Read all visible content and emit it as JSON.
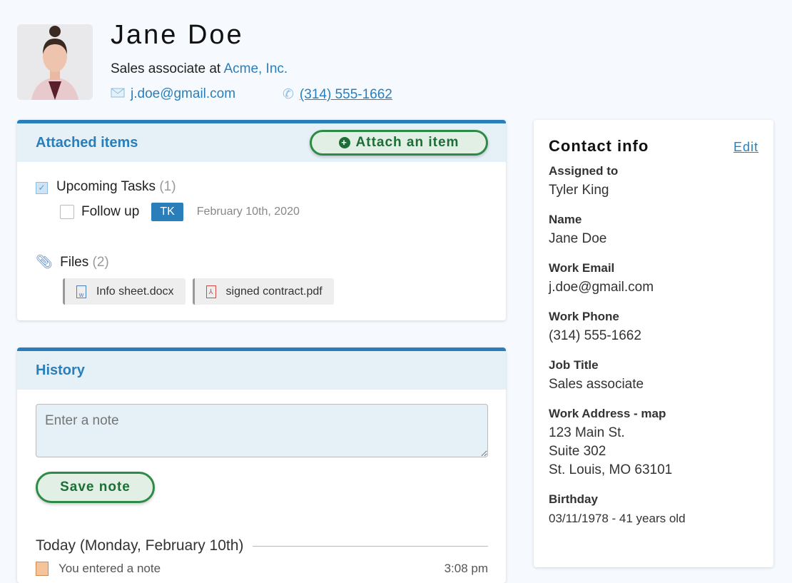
{
  "profile": {
    "name": "Jane Doe",
    "role_prefix": "Sales associate at",
    "company": "Acme, Inc.",
    "email": "j.doe@gmail.com",
    "phone": "(314) 555-1662"
  },
  "attached": {
    "title": "Attached items",
    "attach_button": "Attach an item",
    "tasks": {
      "label": "Upcoming Tasks",
      "count": "(1)",
      "items": [
        {
          "label": "Follow up",
          "assignee": "TK",
          "date": "February 10th, 2020",
          "done": false
        }
      ]
    },
    "files": {
      "label": "Files",
      "count": "(2)",
      "items": [
        {
          "name": "Info sheet.docx",
          "icon": "word-doc-icon"
        },
        {
          "name": "signed contract.pdf",
          "icon": "pdf-icon"
        }
      ]
    }
  },
  "history": {
    "title": "History",
    "note_placeholder": "Enter a note",
    "save_button": "Save note",
    "day_heading": "Today (Monday, February 10th)",
    "entries": [
      {
        "text": "You entered a note",
        "time": "3:08 pm"
      }
    ]
  },
  "contact_info": {
    "title": "Contact info",
    "edit": "Edit",
    "fields": [
      {
        "label": "Assigned to",
        "value": "Tyler King"
      },
      {
        "label": "Name",
        "value": "Jane Doe"
      },
      {
        "label": "Work Email",
        "value": "j.doe@gmail.com"
      },
      {
        "label": "Work Phone",
        "value": "(314) 555-1662"
      },
      {
        "label": "Job Title",
        "value": "Sales associate"
      },
      {
        "label": "Work Address - map",
        "lines": [
          "123 Main St.",
          "Suite 302",
          "St. Louis, MO 63101"
        ]
      },
      {
        "label": "Birthday",
        "value": "03/11/1978 - 41 years old"
      }
    ]
  },
  "colors": {
    "accent": "#2a7fba",
    "green": "#2e8b47",
    "background": "#f6fafe"
  }
}
